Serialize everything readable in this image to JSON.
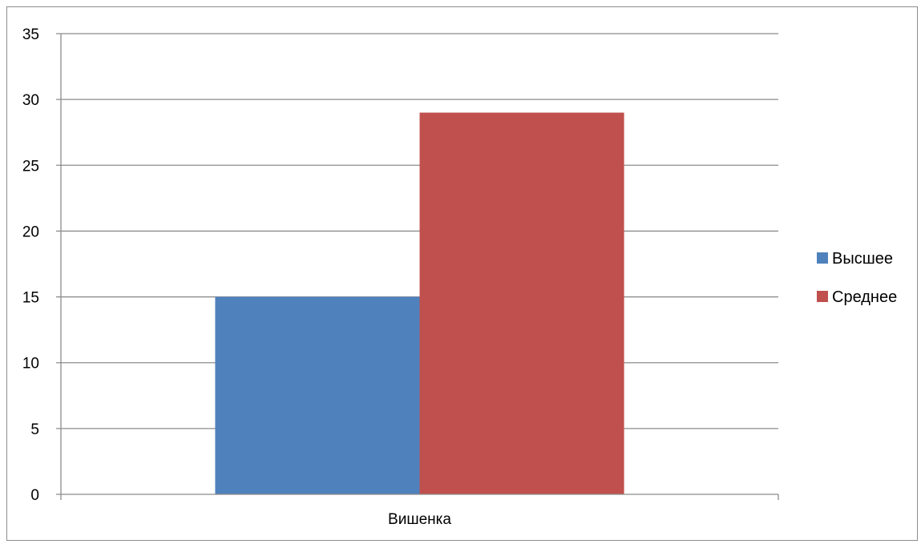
{
  "chart_data": {
    "type": "bar",
    "categories": [
      "Вишенка"
    ],
    "series": [
      {
        "name": "Высшее",
        "values": [
          15
        ],
        "color": "#4f81bd"
      },
      {
        "name": "Среднее",
        "values": [
          29
        ],
        "color": "#c0504d"
      }
    ],
    "ylim": [
      0,
      35
    ],
    "yticks": [
      0,
      5,
      10,
      15,
      20,
      25,
      30,
      35
    ],
    "grid": true,
    "legend": "right",
    "gridline_color": "#8c8c8c"
  }
}
